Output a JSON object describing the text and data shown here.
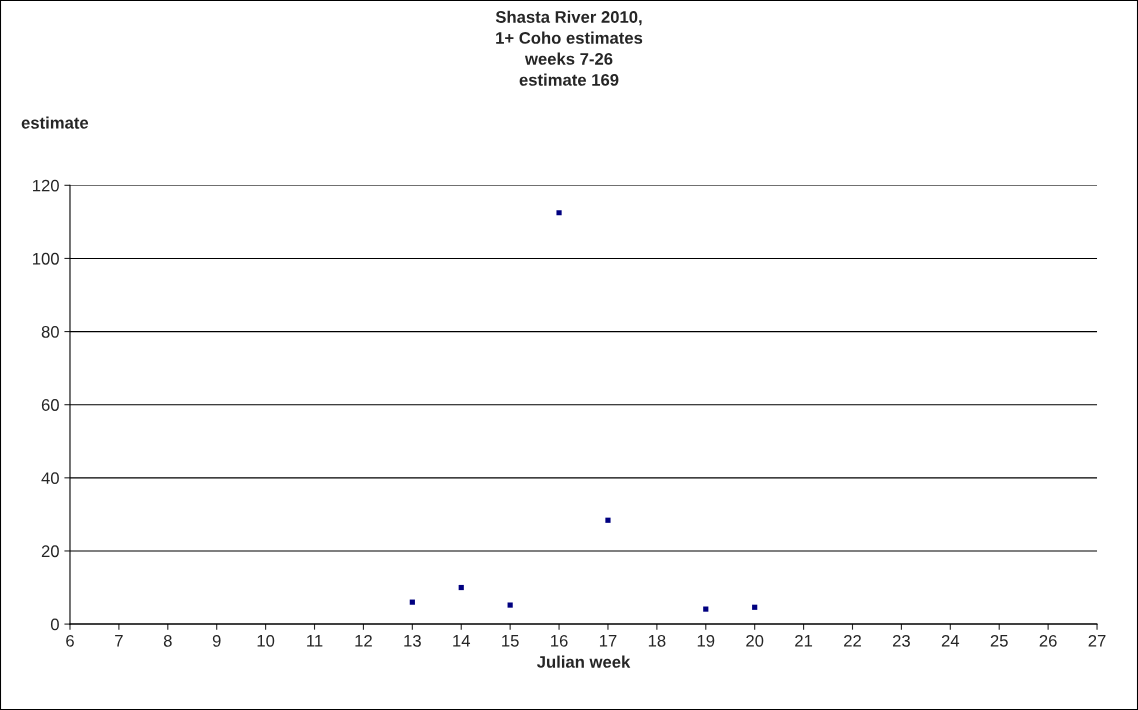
{
  "chart_data": {
    "type": "scatter",
    "title": "Shasta River 2010,\n1+ Coho estimates\nweeks 7-26\nestimate 169",
    "xlabel": "Julian week",
    "ylabel": "estimate",
    "x": [
      13,
      14,
      15,
      16,
      17,
      19,
      20
    ],
    "series": [
      {
        "color": "#000080",
        "values": [
          6,
          10,
          5.2,
          112.5,
          28.4,
          4.1,
          4.6
        ]
      }
    ],
    "xlim": [
      6,
      27
    ],
    "xticks": [
      6,
      7,
      8,
      9,
      10,
      11,
      12,
      13,
      14,
      15,
      16,
      17,
      18,
      19,
      20,
      21,
      22,
      23,
      24,
      25,
      26,
      27
    ],
    "ylim": [
      0,
      120
    ],
    "yticks": [
      0,
      20,
      40,
      60,
      80,
      100,
      120
    ],
    "grid": "y",
    "legend": false,
    "marker": "square"
  }
}
